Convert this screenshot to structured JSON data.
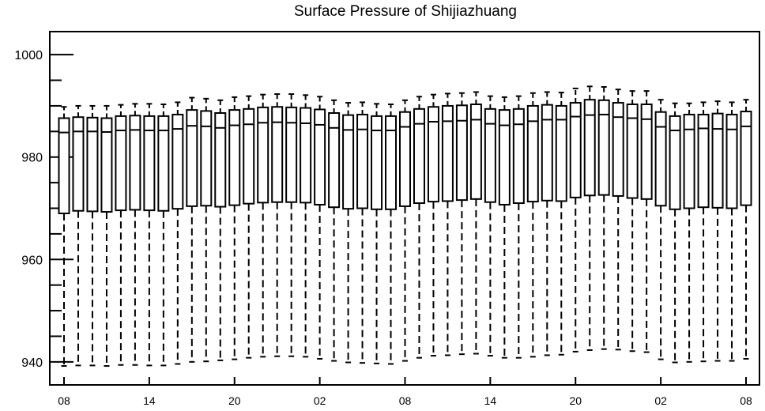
{
  "chart_data": {
    "type": "box",
    "title": "Surface Pressure of Shijiazhuang",
    "xlabel": "",
    "ylabel": "",
    "ylim": [
      935.5,
      1004.5
    ],
    "yticks": [
      940,
      960,
      980,
      1000
    ],
    "y_minor_step": 5,
    "xticks": [
      {
        "index": 0,
        "label": "08"
      },
      {
        "index": 6,
        "label": "14"
      },
      {
        "index": 12,
        "label": "20"
      },
      {
        "index": 18,
        "label": "02"
      },
      {
        "index": 24,
        "label": "08"
      },
      {
        "index": 30,
        "label": "14"
      },
      {
        "index": 36,
        "label": "20"
      },
      {
        "index": 42,
        "label": "02"
      },
      {
        "index": 48,
        "label": "08"
      }
    ],
    "n_categories": 49,
    "series": [
      {
        "whisker_low": [
          939.2,
          939.3,
          939.3,
          939.2,
          939.4,
          939.4,
          939.3,
          939.3,
          939.6,
          940.0,
          940.1,
          940.3,
          940.5,
          940.8,
          941.0,
          941.1,
          941.1,
          941.0,
          940.6,
          940.2,
          939.9,
          939.8,
          939.7,
          939.6,
          940.2,
          940.8,
          941.2,
          941.3,
          941.5,
          941.6,
          941.2,
          940.8,
          940.8,
          941.0,
          941.3,
          941.4,
          942.0,
          942.3,
          942.5,
          942.4,
          942.1,
          941.9,
          940.5,
          939.9,
          940.0,
          940.1,
          940.2,
          940.2,
          940.6
        ],
        "q1": [
          969.0,
          969.5,
          969.4,
          969.3,
          969.6,
          969.7,
          969.6,
          969.5,
          969.9,
          970.4,
          970.5,
          970.3,
          970.6,
          970.9,
          971.1,
          971.2,
          971.2,
          971.1,
          970.7,
          970.2,
          969.9,
          970.0,
          969.8,
          969.8,
          970.4,
          971.0,
          971.3,
          971.4,
          971.6,
          971.8,
          971.2,
          970.7,
          971.0,
          971.3,
          971.5,
          971.4,
          972.1,
          972.5,
          972.6,
          972.4,
          972.0,
          971.8,
          970.5,
          969.8,
          970.0,
          970.2,
          970.1,
          970.0,
          970.6
        ],
        "median": [
          984.8,
          985.0,
          985.0,
          984.9,
          985.2,
          985.3,
          985.2,
          985.2,
          985.5,
          986.1,
          986.0,
          985.7,
          986.2,
          986.4,
          986.7,
          986.8,
          986.7,
          986.6,
          986.3,
          985.7,
          985.3,
          985.4,
          985.2,
          985.2,
          985.9,
          986.5,
          986.9,
          987.0,
          987.1,
          987.3,
          986.5,
          986.2,
          986.4,
          987.0,
          987.3,
          987.3,
          987.9,
          988.2,
          988.3,
          987.8,
          987.6,
          987.4,
          985.9,
          985.2,
          985.4,
          985.6,
          985.5,
          985.4,
          986.0
        ],
        "q3": [
          987.6,
          987.8,
          987.7,
          987.6,
          988.0,
          988.1,
          988.0,
          988.0,
          988.3,
          989.2,
          989.0,
          988.6,
          989.2,
          989.4,
          989.7,
          989.8,
          989.7,
          989.6,
          989.3,
          988.6,
          988.2,
          988.3,
          988.0,
          988.0,
          988.8,
          989.4,
          989.8,
          990.0,
          990.1,
          990.3,
          989.4,
          989.2,
          989.4,
          990.0,
          990.2,
          990.0,
          990.6,
          991.2,
          991.1,
          990.6,
          990.3,
          990.3,
          988.8,
          988.0,
          988.3,
          988.3,
          988.5,
          988.3,
          988.9
        ],
        "whisker_high": [
          989.8,
          990.0,
          990.0,
          990.0,
          990.2,
          990.4,
          990.4,
          990.3,
          990.7,
          991.6,
          991.4,
          991.1,
          991.7,
          991.9,
          992.2,
          992.3,
          992.3,
          992.1,
          991.8,
          991.1,
          990.6,
          990.7,
          990.4,
          990.3,
          991.1,
          991.8,
          992.2,
          992.4,
          992.5,
          992.7,
          991.9,
          991.7,
          991.9,
          992.5,
          992.7,
          992.6,
          993.4,
          993.8,
          993.7,
          993.2,
          992.9,
          992.9,
          991.2,
          990.5,
          990.5,
          990.7,
          990.9,
          990.7,
          991.2
        ]
      }
    ]
  }
}
